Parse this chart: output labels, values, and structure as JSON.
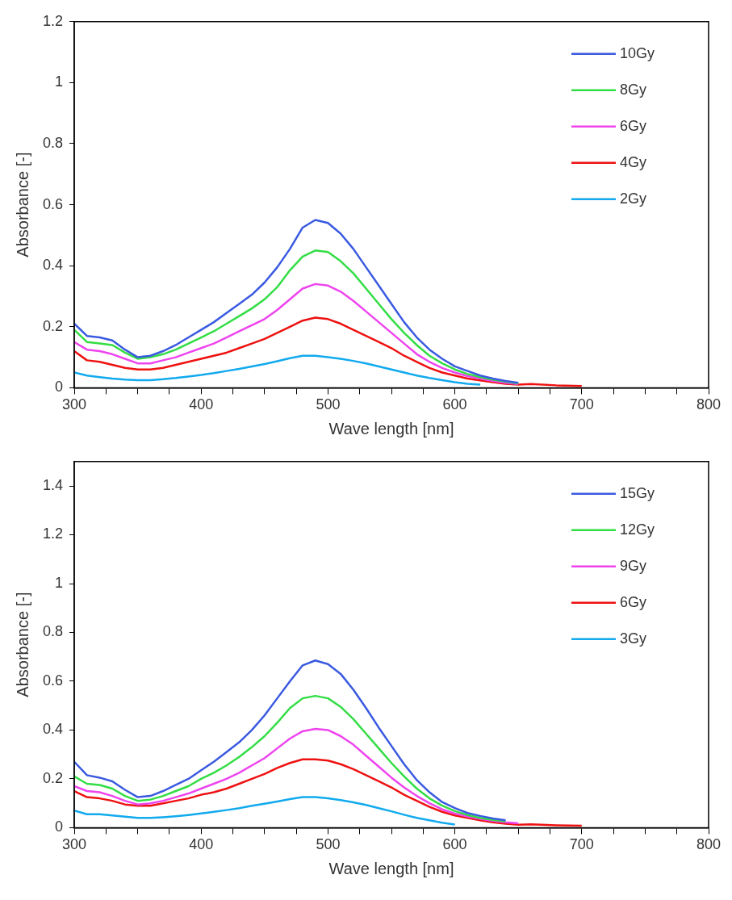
{
  "chart_data": [
    {
      "type": "line",
      "xlabel": "Wave length [nm]",
      "ylabel": "Absorbance [-]",
      "xlim": [
        300,
        800
      ],
      "ylim": [
        0,
        1.2
      ],
      "xticks": [
        300,
        {
          "value": 325,
          "label": null
        },
        {
          "value": 350,
          "label": null
        },
        {
          "value": 375,
          "label": null
        },
        400,
        {
          "value": 425,
          "label": null
        },
        {
          "value": 450,
          "label": null
        },
        {
          "value": 475,
          "label": null
        },
        500,
        {
          "value": 525,
          "label": null
        },
        {
          "value": 550,
          "label": null
        },
        {
          "value": 575,
          "label": null
        },
        600,
        {
          "value": 625,
          "label": null
        },
        {
          "value": 650,
          "label": null
        },
        {
          "value": 675,
          "label": null
        },
        700,
        {
          "value": 725,
          "label": null
        },
        {
          "value": 750,
          "label": null
        },
        {
          "value": 775,
          "label": null
        },
        800
      ],
      "yticks": [
        0,
        0.2,
        0.4,
        0.6,
        0.8,
        1,
        1.2
      ],
      "grid": false,
      "legend": "top right",
      "marker": "none",
      "line_style": "solid",
      "x": [
        300,
        310,
        320,
        330,
        340,
        350,
        360,
        370,
        380,
        390,
        400,
        410,
        420,
        430,
        440,
        450,
        460,
        470,
        480,
        490,
        500,
        510,
        520,
        530,
        540,
        550,
        560,
        570,
        580,
        590,
        600,
        610,
        620,
        630,
        640,
        650,
        660,
        680,
        700
      ],
      "series": [
        {
          "name": "10Gy",
          "color": "#3a5ae0",
          "values": [
            0.21,
            0.17,
            0.165,
            0.155,
            0.125,
            0.1,
            0.105,
            0.12,
            0.14,
            0.165,
            0.19,
            0.215,
            0.245,
            0.275,
            0.305,
            0.345,
            0.395,
            0.455,
            0.525,
            0.55,
            0.54,
            0.505,
            0.455,
            0.395,
            0.335,
            0.275,
            0.215,
            0.165,
            0.125,
            0.095,
            0.07,
            0.055,
            0.04,
            0.03,
            0.022,
            0.016,
            null,
            null,
            null
          ]
        },
        {
          "name": "8Gy",
          "color": "#33dd44",
          "values": [
            0.19,
            0.15,
            0.145,
            0.14,
            0.115,
            0.095,
            0.1,
            0.11,
            0.125,
            0.145,
            0.165,
            0.185,
            0.21,
            0.235,
            0.26,
            0.29,
            0.33,
            0.385,
            0.43,
            0.45,
            0.445,
            0.415,
            0.375,
            0.325,
            0.275,
            0.225,
            0.18,
            0.14,
            0.105,
            0.08,
            0.06,
            0.045,
            0.035,
            0.027,
            0.02,
            0.014,
            null,
            null,
            null
          ]
        },
        {
          "name": "6Gy",
          "color": "#ee44ee",
          "values": [
            0.15,
            0.125,
            0.12,
            0.11,
            0.095,
            0.08,
            0.08,
            0.09,
            0.1,
            0.115,
            0.13,
            0.145,
            0.165,
            0.185,
            0.205,
            0.225,
            0.255,
            0.29,
            0.325,
            0.34,
            0.335,
            0.315,
            0.285,
            0.25,
            0.215,
            0.18,
            0.145,
            0.11,
            0.085,
            0.065,
            0.05,
            0.038,
            0.03,
            0.022,
            0.016,
            0.012,
            null,
            null,
            null
          ]
        },
        {
          "name": "4Gy",
          "color": "#ee1111",
          "values": [
            0.12,
            0.09,
            0.085,
            0.075,
            0.065,
            0.06,
            0.06,
            0.065,
            0.075,
            0.085,
            0.095,
            0.105,
            0.115,
            0.13,
            0.145,
            0.16,
            0.18,
            0.2,
            0.22,
            0.23,
            0.225,
            0.21,
            0.19,
            0.17,
            0.15,
            0.13,
            0.105,
            0.085,
            0.065,
            0.05,
            0.04,
            0.03,
            0.024,
            0.018,
            0.013,
            0.01,
            0.012,
            0.008,
            0.006
          ]
        },
        {
          "name": "2Gy",
          "color": "#11aaee",
          "values": [
            0.05,
            0.04,
            0.035,
            0.03,
            0.027,
            0.025,
            0.025,
            0.028,
            0.032,
            0.037,
            0.042,
            0.048,
            0.055,
            0.062,
            0.07,
            0.078,
            0.087,
            0.097,
            0.105,
            0.105,
            0.1,
            0.095,
            0.088,
            0.08,
            0.07,
            0.06,
            0.05,
            0.04,
            0.032,
            0.025,
            0.018,
            0.013,
            0.01,
            null,
            null,
            null,
            null,
            null,
            null
          ]
        }
      ]
    },
    {
      "type": "line",
      "xlabel": "Wave length [nm]",
      "ylabel": "Absorbance [-]",
      "xlim": [
        300,
        800
      ],
      "ylim": [
        0,
        1.5
      ],
      "xticks": [
        300,
        {
          "value": 325,
          "label": null
        },
        {
          "value": 350,
          "label": null
        },
        {
          "value": 375,
          "label": null
        },
        400,
        {
          "value": 425,
          "label": null
        },
        {
          "value": 450,
          "label": null
        },
        {
          "value": 475,
          "label": null
        },
        500,
        {
          "value": 525,
          "label": null
        },
        {
          "value": 550,
          "label": null
        },
        {
          "value": 575,
          "label": null
        },
        600,
        {
          "value": 625,
          "label": null
        },
        {
          "value": 650,
          "label": null
        },
        {
          "value": 675,
          "label": null
        },
        700,
        {
          "value": 725,
          "label": null
        },
        {
          "value": 750,
          "label": null
        },
        {
          "value": 775,
          "label": null
        },
        800
      ],
      "yticks": [
        0,
        0.2,
        0.4,
        0.6,
        0.8,
        1,
        1.2,
        1.4
      ],
      "grid": false,
      "legend": "top right",
      "marker": "none",
      "line_style": "solid",
      "x": [
        300,
        310,
        320,
        330,
        340,
        350,
        360,
        370,
        380,
        390,
        400,
        410,
        420,
        430,
        440,
        450,
        460,
        470,
        480,
        490,
        500,
        510,
        520,
        530,
        540,
        550,
        560,
        570,
        580,
        590,
        600,
        610,
        620,
        630,
        640,
        650,
        660,
        680,
        700
      ],
      "series": [
        {
          "name": "15Gy",
          "color": "#3a5ae0",
          "values": [
            0.27,
            0.215,
            0.205,
            0.19,
            0.155,
            0.125,
            0.13,
            0.15,
            0.175,
            0.2,
            0.235,
            0.27,
            0.31,
            0.35,
            0.4,
            0.46,
            0.53,
            0.6,
            0.665,
            0.685,
            0.67,
            0.63,
            0.565,
            0.49,
            0.41,
            0.335,
            0.26,
            0.195,
            0.145,
            0.105,
            0.08,
            0.06,
            0.048,
            0.038,
            0.03,
            null,
            null,
            null,
            null
          ]
        },
        {
          "name": "12Gy",
          "color": "#33dd44",
          "values": [
            0.21,
            0.18,
            0.175,
            0.16,
            0.13,
            0.11,
            0.115,
            0.13,
            0.15,
            0.17,
            0.2,
            0.225,
            0.255,
            0.29,
            0.33,
            0.375,
            0.43,
            0.49,
            0.53,
            0.54,
            0.53,
            0.495,
            0.445,
            0.385,
            0.325,
            0.265,
            0.21,
            0.16,
            0.12,
            0.09,
            0.068,
            0.052,
            0.04,
            0.032,
            0.026,
            null,
            null,
            null,
            null
          ]
        },
        {
          "name": "9Gy",
          "color": "#ee44ee",
          "values": [
            0.17,
            0.15,
            0.145,
            0.13,
            0.11,
            0.095,
            0.1,
            0.11,
            0.125,
            0.14,
            0.16,
            0.18,
            0.2,
            0.225,
            0.255,
            0.285,
            0.325,
            0.365,
            0.395,
            0.405,
            0.4,
            0.375,
            0.34,
            0.295,
            0.25,
            0.205,
            0.165,
            0.13,
            0.1,
            0.075,
            0.058,
            0.046,
            0.036,
            0.028,
            0.022,
            0.018,
            null,
            null,
            null
          ]
        },
        {
          "name": "6Gy",
          "color": "#ee1111",
          "values": [
            0.15,
            0.125,
            0.12,
            0.11,
            0.095,
            0.09,
            0.09,
            0.1,
            0.11,
            0.12,
            0.135,
            0.145,
            0.16,
            0.18,
            0.2,
            0.22,
            0.245,
            0.265,
            0.28,
            0.28,
            0.275,
            0.26,
            0.24,
            0.215,
            0.19,
            0.165,
            0.135,
            0.11,
            0.085,
            0.065,
            0.05,
            0.04,
            0.03,
            0.022,
            0.016,
            0.012,
            0.014,
            0.01,
            0.008
          ]
        },
        {
          "name": "3Gy",
          "color": "#11aaee",
          "values": [
            0.07,
            0.055,
            0.055,
            0.05,
            0.045,
            0.04,
            0.04,
            0.043,
            0.047,
            0.052,
            0.058,
            0.065,
            0.072,
            0.08,
            0.09,
            0.098,
            0.107,
            0.117,
            0.125,
            0.125,
            0.12,
            0.113,
            0.104,
            0.093,
            0.08,
            0.067,
            0.053,
            0.04,
            0.03,
            0.02,
            0.013,
            null,
            null,
            null,
            null,
            null,
            null,
            null,
            null
          ]
        }
      ]
    }
  ]
}
